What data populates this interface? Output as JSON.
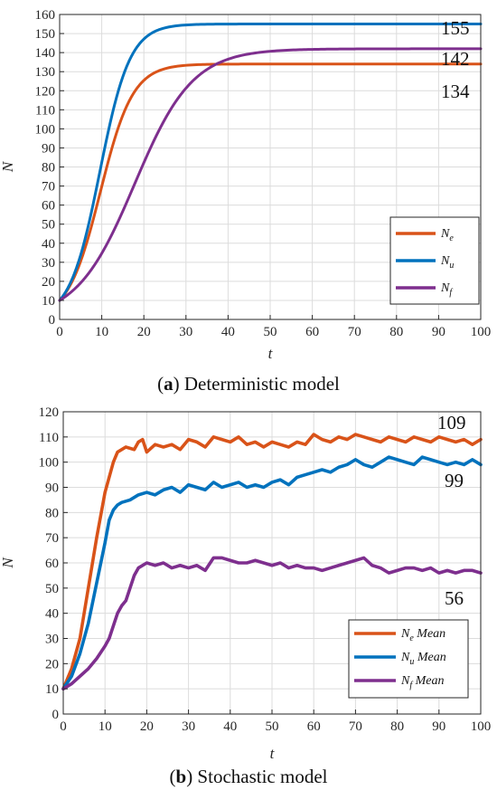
{
  "chart_data": [
    {
      "type": "line",
      "caption_letter": "a",
      "caption_text": ") Deterministic model",
      "xlabel": "t",
      "ylabel": "N",
      "xlim": [
        0,
        100
      ],
      "ylim": [
        0,
        160
      ],
      "xticks": [
        0,
        10,
        20,
        30,
        40,
        50,
        60,
        70,
        80,
        90,
        100
      ],
      "yticks": [
        0,
        10,
        20,
        30,
        40,
        50,
        60,
        70,
        80,
        90,
        100,
        110,
        120,
        130,
        140,
        150,
        160
      ],
      "grid": true,
      "legend_position": "lower-right",
      "series": [
        {
          "name": "N",
          "sub": "e",
          "color": "#D95319",
          "model": "logistic",
          "K": 134,
          "r": 0.26,
          "x0": 10,
          "end_label": "134"
        },
        {
          "name": "N",
          "sub": "u",
          "color": "#0072BD",
          "model": "logistic",
          "K": 155,
          "r": 0.28,
          "x0": 10,
          "end_label": "155"
        },
        {
          "name": "N",
          "sub": "f",
          "color": "#7E2F8E",
          "model": "logistic",
          "K": 142,
          "r": 0.145,
          "x0": 10,
          "end_label": "142"
        }
      ]
    },
    {
      "type": "line",
      "caption_letter": "b",
      "caption_text": ") Stochastic model",
      "xlabel": "t",
      "ylabel": "N",
      "xlim": [
        0,
        100
      ],
      "ylim": [
        0,
        120
      ],
      "xticks": [
        0,
        10,
        20,
        30,
        40,
        50,
        60,
        70,
        80,
        90,
        100
      ],
      "yticks": [
        0,
        10,
        20,
        30,
        40,
        50,
        60,
        70,
        80,
        90,
        100,
        110,
        120
      ],
      "grid": true,
      "legend_position": "lower-right",
      "series": [
        {
          "name": "N",
          "sub": "e",
          "suffix": " Mean",
          "color": "#D95319",
          "end_label": "109",
          "x": [
            0,
            2,
            4,
            6,
            8,
            10,
            12,
            13,
            15,
            17,
            18,
            19,
            20,
            22,
            24,
            26,
            28,
            30,
            32,
            34,
            36,
            38,
            40,
            42,
            44,
            46,
            48,
            50,
            52,
            54,
            56,
            58,
            60,
            62,
            64,
            66,
            68,
            70,
            72,
            74,
            76,
            78,
            80,
            82,
            84,
            86,
            88,
            90,
            92,
            94,
            96,
            98,
            100
          ],
          "y": [
            10,
            18,
            30,
            50,
            70,
            88,
            100,
            104,
            106,
            105,
            108,
            109,
            104,
            107,
            106,
            107,
            105,
            109,
            108,
            106,
            110,
            109,
            108,
            110,
            107,
            108,
            106,
            108,
            107,
            106,
            108,
            107,
            111,
            109,
            108,
            110,
            109,
            111,
            110,
            109,
            108,
            110,
            109,
            108,
            110,
            109,
            108,
            110,
            109,
            108,
            109,
            107,
            109
          ]
        },
        {
          "name": "N",
          "sub": "u",
          "suffix": " Mean",
          "color": "#0072BD",
          "end_label": "99",
          "x": [
            0,
            2,
            4,
            6,
            8,
            10,
            11,
            12,
            13,
            14,
            16,
            18,
            20,
            22,
            24,
            26,
            28,
            30,
            32,
            34,
            36,
            38,
            40,
            42,
            44,
            46,
            48,
            50,
            52,
            54,
            56,
            58,
            60,
            62,
            64,
            66,
            68,
            70,
            72,
            74,
            76,
            78,
            80,
            82,
            84,
            86,
            88,
            90,
            92,
            94,
            96,
            98,
            100
          ],
          "y": [
            10,
            15,
            24,
            36,
            52,
            68,
            77,
            81,
            83,
            84,
            85,
            87,
            88,
            87,
            89,
            90,
            88,
            91,
            90,
            89,
            92,
            90,
            91,
            92,
            90,
            91,
            90,
            92,
            93,
            91,
            94,
            95,
            96,
            97,
            96,
            98,
            99,
            101,
            99,
            98,
            100,
            102,
            101,
            100,
            99,
            102,
            101,
            100,
            99,
            100,
            99,
            101,
            99
          ]
        },
        {
          "name": "N",
          "sub": "f",
          "suffix": " Mean",
          "color": "#7E2F8E",
          "end_label": "56",
          "x": [
            0,
            2,
            4,
            6,
            8,
            10,
            11,
            12,
            13,
            14,
            15,
            16,
            17,
            18,
            20,
            22,
            24,
            26,
            28,
            30,
            32,
            34,
            36,
            38,
            40,
            42,
            44,
            46,
            48,
            50,
            52,
            54,
            56,
            58,
            60,
            62,
            64,
            66,
            68,
            70,
            72,
            74,
            76,
            78,
            80,
            82,
            84,
            86,
            88,
            90,
            92,
            94,
            96,
            98,
            100
          ],
          "y": [
            10,
            12,
            15,
            18,
            22,
            27,
            30,
            35,
            40,
            43,
            45,
            50,
            55,
            58,
            60,
            59,
            60,
            58,
            59,
            58,
            59,
            57,
            62,
            62,
            61,
            60,
            60,
            61,
            60,
            59,
            60,
            58,
            59,
            58,
            58,
            57,
            58,
            59,
            60,
            61,
            62,
            59,
            58,
            56,
            57,
            58,
            58,
            57,
            58,
            56,
            57,
            56,
            57,
            57,
            56
          ]
        }
      ]
    }
  ]
}
